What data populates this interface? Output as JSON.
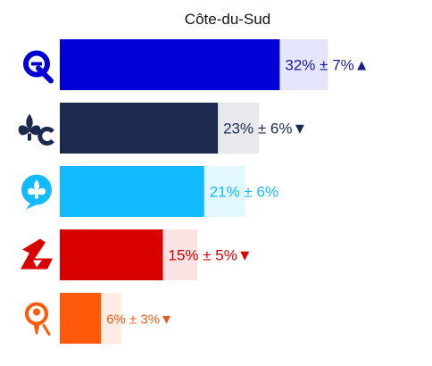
{
  "chart_data": {
    "type": "bar",
    "orientation": "horizontal",
    "title": "Côte-du-Sud",
    "xlim": [
      0,
      45
    ],
    "grid": false,
    "legend": "none",
    "bars": [
      {
        "party_icon": "caq-q-logo-icon",
        "value": 32,
        "margin": 7,
        "trend": "▲",
        "color": "#0000d6",
        "light": "#e5e5fb",
        "text_color": "#1a1a8f"
      },
      {
        "party_icon": "plq-fleur-de-lis-c-icon",
        "value": 23,
        "margin": 6,
        "trend": "▼",
        "color": "#1b2a4e",
        "light": "#e8e9ec",
        "text_color": "#1b2a4e"
      },
      {
        "party_icon": "pq-speech-bubble-fleur-de-lis-icon",
        "value": 21,
        "margin": 6,
        "trend": "",
        "color": "#12bbff",
        "light": "#e3f7ff",
        "text_color": "#12bbff"
      },
      {
        "party_icon": "plq-red-leaf-icon",
        "value": 15,
        "margin": 5,
        "trend": "▼",
        "color": "#d90000",
        "light": "#fbe3e3",
        "text_color": "#d90000"
      },
      {
        "party_icon": "qs-person-icon",
        "value": 6,
        "margin": 3,
        "trend": "▼",
        "color": "#ff5a0a",
        "light": "#ffece3",
        "text_color": "#e85c1a"
      }
    ]
  }
}
